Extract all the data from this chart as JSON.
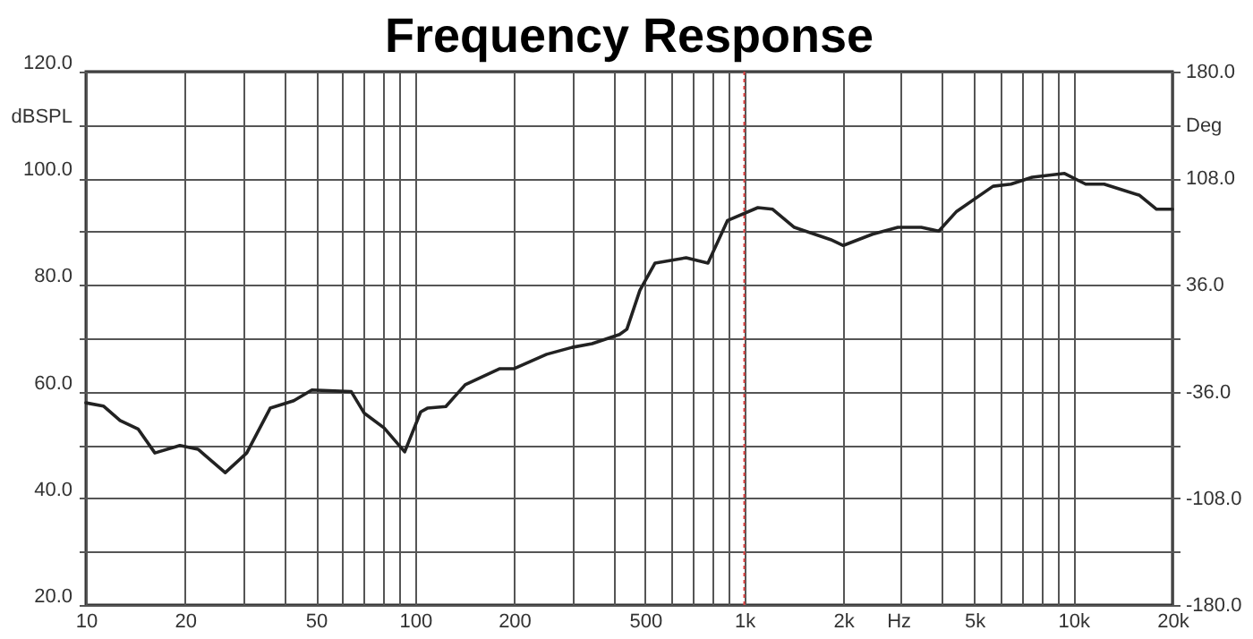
{
  "chart_data": {
    "type": "line",
    "title": "Frequency Response",
    "xlabel": "Hz",
    "log": "x",
    "grid": true,
    "marker": "none",
    "line_style": "solid",
    "xlim": [
      10,
      20000
    ],
    "xticks": [
      10,
      {
        "value": 20,
        "label": "20"
      },
      {
        "value": 30,
        "label": null
      },
      {
        "value": 40,
        "label": null
      },
      50,
      {
        "value": 60,
        "label": null
      },
      {
        "value": 70,
        "label": null
      },
      {
        "value": 80,
        "label": null
      },
      {
        "value": 90,
        "label": null
      },
      100,
      200,
      {
        "value": 300,
        "label": null
      },
      {
        "value": 400,
        "label": null
      },
      500,
      {
        "value": 600,
        "label": null
      },
      {
        "value": 700,
        "label": null
      },
      {
        "value": 800,
        "label": null
      },
      {
        "value": 900,
        "label": null
      },
      {
        "value": 1000,
        "label": "1k"
      },
      {
        "value": 2000,
        "label": "2k"
      },
      {
        "value": 3000,
        "label": null
      },
      {
        "value": 4000,
        "label": null
      },
      {
        "value": 5000,
        "label": "5k"
      },
      {
        "value": 6000,
        "label": null
      },
      {
        "value": 7000,
        "label": null
      },
      {
        "value": 8000,
        "label": null
      },
      {
        "value": 9000,
        "label": null
      },
      {
        "value": 10000,
        "label": "10k"
      },
      {
        "value": 20000,
        "label": "20k"
      }
    ],
    "ylim": [
      20,
      120
    ],
    "yticks": [
      {
        "value": 20,
        "label": "20.0"
      },
      {
        "value": 30,
        "label": null
      },
      {
        "value": 40,
        "label": "40.0"
      },
      {
        "value": 50,
        "label": null
      },
      {
        "value": 60,
        "label": "60.0"
      },
      {
        "value": 70,
        "label": null
      },
      {
        "value": 80,
        "label": "80.0"
      },
      {
        "value": 90,
        "label": null
      },
      {
        "value": 100,
        "label": "100.0"
      },
      {
        "value": 110,
        "label": "dBSPL"
      },
      {
        "value": 120,
        "label": "120.0"
      }
    ],
    "y2lim": [
      -180,
      180
    ],
    "y2ticks": [
      {
        "value": -180,
        "label": "-180.0"
      },
      {
        "value": -144,
        "label": null
      },
      {
        "value": -108,
        "label": "-108.0"
      },
      {
        "value": -72,
        "label": null
      },
      {
        "value": -36,
        "label": "-36.0"
      },
      {
        "value": 0,
        "label": null
      },
      {
        "value": 36,
        "label": "36.0"
      },
      {
        "value": 72,
        "label": null
      },
      {
        "value": 108,
        "label": "108.0"
      },
      {
        "value": 144,
        "label": "Deg"
      },
      {
        "value": 180,
        "label": "180.0"
      }
    ],
    "ref_lines": [
      {
        "axis": "x",
        "value": 1000,
        "color": "#e04040",
        "line_style": "dotted"
      }
    ],
    "series": [
      {
        "color": "#222222",
        "x": [
          10,
          11.3,
          12.7,
          14.4,
          16.2,
          19.3,
          21.9,
          26.5,
          30.8,
          36.3,
          42.8,
          48.6,
          64,
          70,
          80.5,
          93,
          104,
          109,
          124,
          142,
          181,
          200,
          251,
          300,
          345,
          418,
          440,
          482,
          536,
          666,
          776,
          890,
          1100,
          1220,
          1420,
          1830,
          2000,
          2450,
          2930,
          3450,
          3900,
          4420,
          5700,
          6460,
          7500,
          9400,
          10900,
          12400,
          15900,
          17900,
          20000
        ],
        "values": [
          57.9,
          57.3,
          54.6,
          53,
          48.5,
          49.9,
          49.2,
          44.8,
          48.5,
          56.9,
          58.3,
          60.3,
          60,
          56,
          53.2,
          48.7,
          56.2,
          56.9,
          57.2,
          61.3,
          64.3,
          64.3,
          67,
          68.3,
          69,
          70.7,
          71.7,
          79,
          84.1,
          85.1,
          84.1,
          92.1,
          94.5,
          94.2,
          90.8,
          88.5,
          87.4,
          89.5,
          90.8,
          90.8,
          90.1,
          93.8,
          98.5,
          98.9,
          100.2,
          100.9,
          98.9,
          98.9,
          96.8,
          94.2,
          94.2
        ]
      }
    ]
  }
}
